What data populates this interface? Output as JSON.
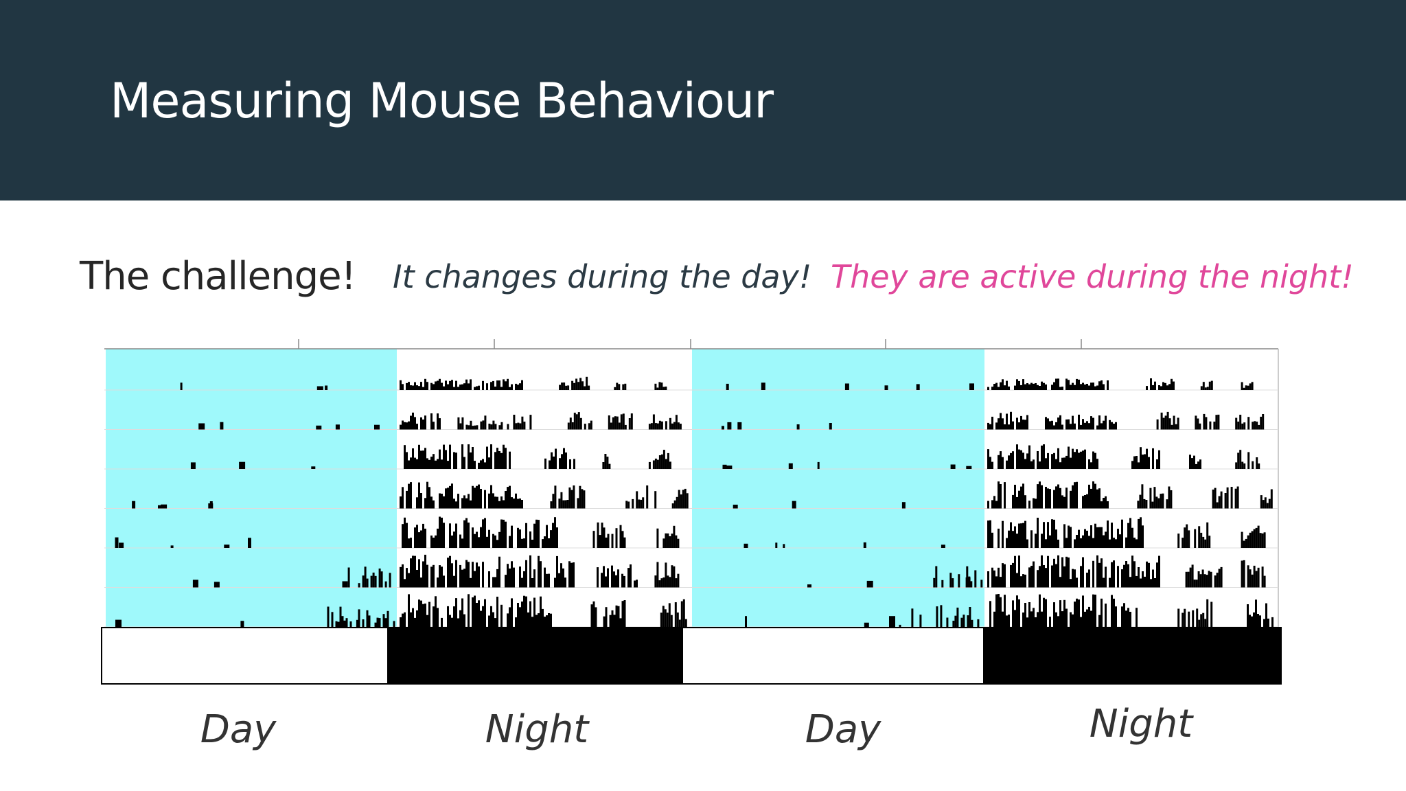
{
  "slide": {
    "title": "Measuring Mouse Behaviour",
    "subtitle": "The challenge!",
    "note_day": "It changes during the day!",
    "note_night": "They are active during the night!"
  },
  "colors": {
    "header_bg": "#213642",
    "day_shade": "#9ff9fb",
    "activity": "#000000",
    "note_day": "#2b3a44",
    "note_night": "#e0479a"
  },
  "chart_data": {
    "type": "actogram",
    "title": "",
    "days_shown": 7,
    "cycles_per_row": 2,
    "light_dark_bar": [
      "light",
      "dark",
      "light",
      "dark"
    ],
    "period_labels": [
      "Day",
      "Night",
      "Day",
      "Night"
    ],
    "shading": "light phase shaded cyan"
  }
}
